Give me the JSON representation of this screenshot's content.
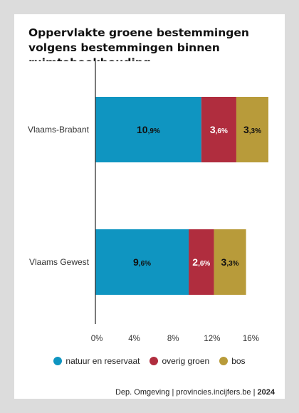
{
  "chart_data": {
    "type": "bar",
    "orientation": "horizontal",
    "stacked": true,
    "title": "Oppervlakte groene bestemmingen volgens bestemmingen binnen ruimteboekhouding",
    "categories": [
      "Vlaams-Brabant",
      "Vlaams Gewest"
    ],
    "series": [
      {
        "name": "natuur en reservaat",
        "color": "#0f95c1",
        "values": [
          10.9,
          9.6
        ],
        "labels": [
          [
            "10",
            ",9%"
          ],
          [
            "9",
            ",6%"
          ]
        ]
      },
      {
        "name": "overig groen",
        "color": "#b02d3e",
        "values": [
          3.6,
          2.6
        ],
        "labels": [
          [
            "3",
            ",6%"
          ],
          [
            "2",
            ",6%"
          ]
        ]
      },
      {
        "name": "bos",
        "color": "#b89b3a",
        "values": [
          3.3,
          3.3
        ],
        "labels": [
          [
            "3",
            ",3%"
          ],
          [
            "3",
            ",3%"
          ]
        ]
      }
    ],
    "x_ticks": [
      "0%",
      "4%",
      "8%",
      "12%",
      "16%"
    ],
    "x_tick_values": [
      0,
      4,
      8,
      12,
      16
    ],
    "xlim": [
      0,
      17.8
    ],
    "grid": false,
    "legend": "bottom"
  },
  "footer": {
    "source": "Dep. Omgeving | provincies.incijfers.be |",
    "year": "2024"
  }
}
